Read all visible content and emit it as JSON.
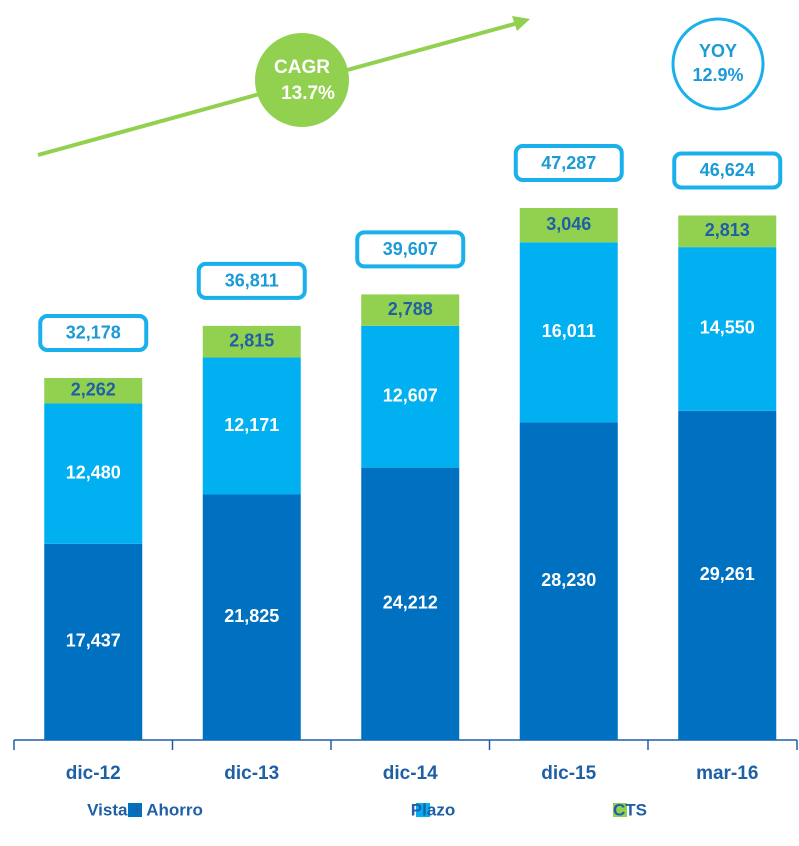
{
  "chart_data": {
    "type": "stacked_bar",
    "categories": [
      "dic-12",
      "dic-13",
      "dic-14",
      "dic-15",
      "mar-16"
    ],
    "series": [
      {
        "name": "Vista +  Ahorro",
        "color": "#0070c0",
        "label_color": "#ffffff",
        "values": [
          17437,
          21825,
          24212,
          28230,
          29261
        ],
        "value_labels": [
          "17,437",
          "21,825",
          "24,212",
          "28,230",
          "29,261"
        ]
      },
      {
        "name": "Plazo",
        "color": "#00b0f0",
        "label_color": "#ffffff",
        "values": [
          12480,
          12171,
          12607,
          16011,
          14550
        ],
        "value_labels": [
          "12,480",
          "12,171",
          "12,607",
          "16,011",
          "14,550"
        ]
      },
      {
        "name": "CTS",
        "color": "#92d050",
        "label_color": "#1f5fa6",
        "values": [
          2262,
          2815,
          2788,
          3046,
          2813
        ],
        "value_labels": [
          "2,262",
          "2,815",
          "2,788",
          "3,046",
          "2,813"
        ]
      }
    ],
    "totals": [
      32178,
      36811,
      39607,
      47287,
      46624
    ],
    "total_labels": [
      "32,178",
      "36,811",
      "39,607",
      "47,287",
      "46,624"
    ],
    "ylim": [
      0,
      50000
    ],
    "annotations": {
      "cagr": [
        "CAGR",
        "13.7%"
      ],
      "yoy": [
        "YOY",
        "12.9%"
      ]
    }
  }
}
